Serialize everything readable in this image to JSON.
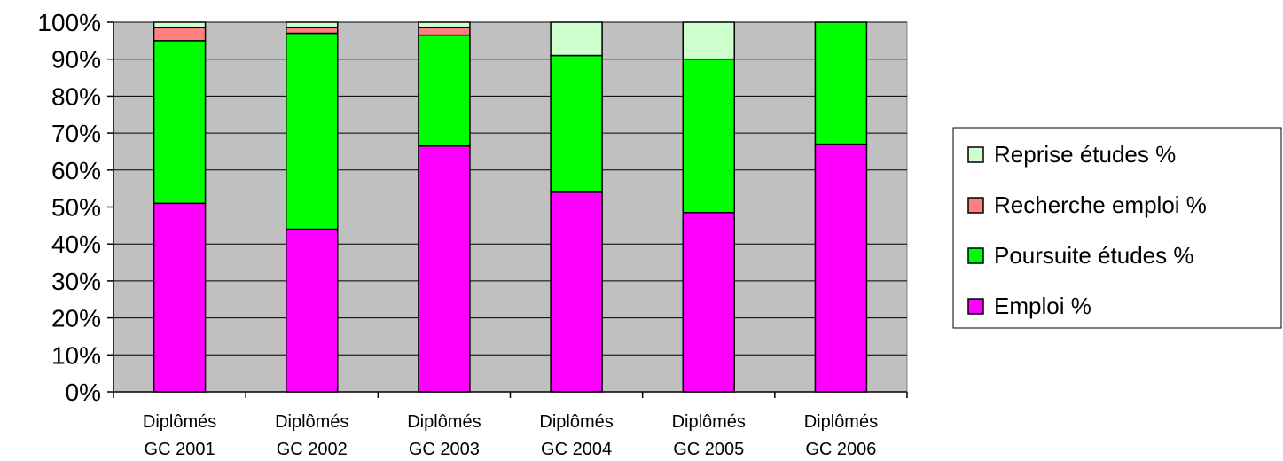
{
  "chart_data": {
    "type": "bar",
    "stacked": true,
    "categories": [
      [
        "Diplômés",
        "GC 2001"
      ],
      [
        "Diplômés",
        "GC 2002"
      ],
      [
        "Diplômés",
        "GC 2003"
      ],
      [
        "Diplômés",
        "GC 2004"
      ],
      [
        "Diplômés",
        "GC 2005"
      ],
      [
        "Diplômés",
        "GC 2006"
      ]
    ],
    "series": [
      {
        "name": "Emploi %",
        "color": "#ff00ff",
        "values": [
          51,
          44,
          66.5,
          54,
          48.5,
          67
        ]
      },
      {
        "name": "Poursuite études %",
        "color": "#00ff00",
        "values": [
          44,
          53,
          30,
          37,
          41.5,
          33
        ]
      },
      {
        "name": "Recherche emploi %",
        "color": "#ff8080",
        "values": [
          3.5,
          1.5,
          2,
          0,
          0,
          0
        ]
      },
      {
        "name": "Reprise études %",
        "color": "#ccffcc",
        "values": [
          1.5,
          1.5,
          1.5,
          9,
          10,
          0
        ]
      }
    ],
    "ylim": [
      0,
      100
    ],
    "yticks": [
      "0%",
      "10%",
      "20%",
      "30%",
      "40%",
      "50%",
      "60%",
      "70%",
      "80%",
      "90%",
      "100%"
    ],
    "grid": true,
    "plot_background": "#c0c0c0",
    "legend": {
      "placement": "right",
      "order": [
        "Reprise études %",
        "Recherche emploi %",
        "Poursuite études %",
        "Emploi %"
      ]
    },
    "title": "",
    "xlabel": "",
    "ylabel": ""
  }
}
